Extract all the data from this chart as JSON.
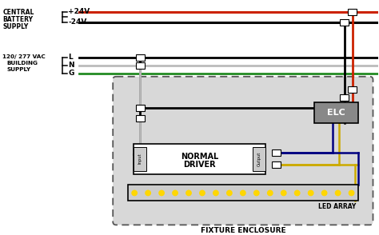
{
  "white": "#ffffff",
  "black": "#000000",
  "red_wire": "#cc2200",
  "green_wire": "#228B22",
  "gray_wire": "#bbbbbb",
  "blue_dark": "#000080",
  "yellow_wire": "#ccaa00",
  "elc_box_color": "#888888",
  "led_body_color": "#cccccc",
  "led_dot_color": "#FFD700",
  "enclosure_bg": "#d8d8d8",
  "driver_box_color": "#ffffff",
  "tab_color": "#cccccc",
  "labels": {
    "central_battery": [
      "CENTRAL",
      "BATTERY",
      "SUPPLY"
    ],
    "plus24": "+24V",
    "minus24": "-24V",
    "building": [
      "120/ 277 VAC",
      "BUILDING",
      "SUPPLY"
    ],
    "L": "L",
    "N": "N",
    "G": "G",
    "elc": "ELC",
    "normal_driver": [
      "NORMAL",
      "DRIVER"
    ],
    "led_array": "LED ARRAY",
    "fixture_enclosure": "FIXTURE ENCLOSURE",
    "input_lbl": "Input",
    "output_lbl": "Output"
  }
}
